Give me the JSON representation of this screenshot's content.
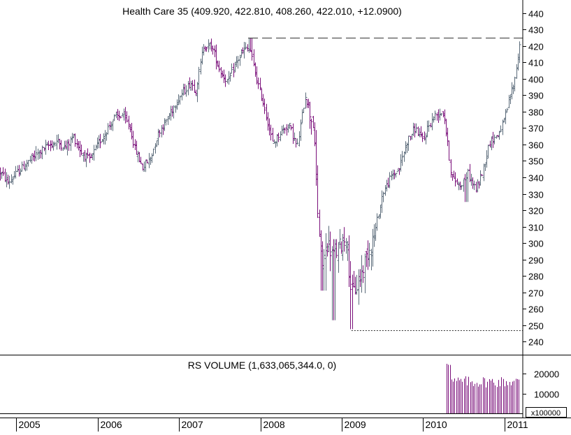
{
  "colors": {
    "up_bar": "#5b6b7a",
    "down_bar": "#7a0f7a",
    "volume_bar": "#7a0f7a",
    "axis": "#000000",
    "reference_line": "#333333",
    "background": "#ffffff"
  },
  "chart_data": [
    {
      "type": "ohlc",
      "title": "Health Care 35 (409.920, 422.810, 408.260, 422.010, +12.0900)",
      "y_axis_side": "right",
      "ylim": [
        232,
        448
      ],
      "yticks": [
        240,
        250,
        260,
        270,
        280,
        290,
        300,
        310,
        320,
        330,
        340,
        350,
        360,
        370,
        380,
        390,
        400,
        410,
        420,
        430,
        440
      ],
      "x_range": [
        2004.8,
        2011.2
      ],
      "x_tick_labels": [
        "2005",
        "2006",
        "2007",
        "2008",
        "2009",
        "2010",
        "2011"
      ],
      "grid": false,
      "close_path": [
        [
          2004.8,
          343
        ],
        [
          2004.9,
          337
        ],
        [
          2005.05,
          345
        ],
        [
          2005.2,
          352
        ],
        [
          2005.35,
          358
        ],
        [
          2005.5,
          362
        ],
        [
          2005.6,
          358
        ],
        [
          2005.7,
          365
        ],
        [
          2005.8,
          355
        ],
        [
          2005.9,
          350
        ],
        [
          2006.0,
          360
        ],
        [
          2006.1,
          368
        ],
        [
          2006.2,
          376
        ],
        [
          2006.3,
          378
        ],
        [
          2006.4,
          370
        ],
        [
          2006.45,
          358
        ],
        [
          2006.55,
          346
        ],
        [
          2006.65,
          352
        ],
        [
          2006.75,
          368
        ],
        [
          2006.85,
          375
        ],
        [
          2006.95,
          385
        ],
        [
          2007.05,
          392
        ],
        [
          2007.15,
          398
        ],
        [
          2007.2,
          392
        ],
        [
          2007.3,
          420
        ],
        [
          2007.4,
          420
        ],
        [
          2007.5,
          405
        ],
        [
          2007.6,
          398
        ],
        [
          2007.7,
          410
        ],
        [
          2007.8,
          418
        ],
        [
          2007.87,
          418
        ],
        [
          2007.95,
          400
        ],
        [
          2008.05,
          382
        ],
        [
          2008.15,
          360
        ],
        [
          2008.25,
          368
        ],
        [
          2008.35,
          372
        ],
        [
          2008.45,
          358
        ],
        [
          2008.55,
          390
        ],
        [
          2008.65,
          372
        ],
        [
          2008.7,
          322
        ],
        [
          2008.75,
          285
        ],
        [
          2008.82,
          300
        ],
        [
          2008.9,
          292
        ],
        [
          2009.0,
          300
        ],
        [
          2009.05,
          305
        ],
        [
          2009.12,
          268
        ],
        [
          2009.2,
          275
        ],
        [
          2009.3,
          292
        ],
        [
          2009.4,
          305
        ],
        [
          2009.5,
          330
        ],
        [
          2009.6,
          340
        ],
        [
          2009.7,
          345
        ],
        [
          2009.8,
          362
        ],
        [
          2009.9,
          370
        ],
        [
          2010.0,
          362
        ],
        [
          2010.05,
          370
        ],
        [
          2010.15,
          378
        ],
        [
          2010.25,
          380
        ],
        [
          2010.35,
          340
        ],
        [
          2010.45,
          335
        ],
        [
          2010.55,
          342
        ],
        [
          2010.65,
          332
        ],
        [
          2010.72,
          342
        ],
        [
          2010.82,
          362
        ],
        [
          2010.92,
          366
        ],
        [
          2011.0,
          375
        ],
        [
          2011.07,
          390
        ],
        [
          2011.12,
          398
        ],
        [
          2011.16,
          412
        ],
        [
          2011.19,
          422
        ]
      ],
      "volume_start": 2010.29,
      "annotations": [
        {
          "type": "horizontal_dashed",
          "value": 425,
          "from_x": 2007.85,
          "to_x": 2011.2
        },
        {
          "type": "horizontal_dotted",
          "value": 247,
          "from_x": 2009.12,
          "to_x": 2011.2
        }
      ]
    },
    {
      "type": "bar",
      "title": "RS VOLUME (1,633,065,344.0, 0)",
      "ylim": [
        0,
        29000
      ],
      "yticks": [
        10000,
        20000
      ],
      "unit_label": "x100000",
      "grid": false
    }
  ]
}
